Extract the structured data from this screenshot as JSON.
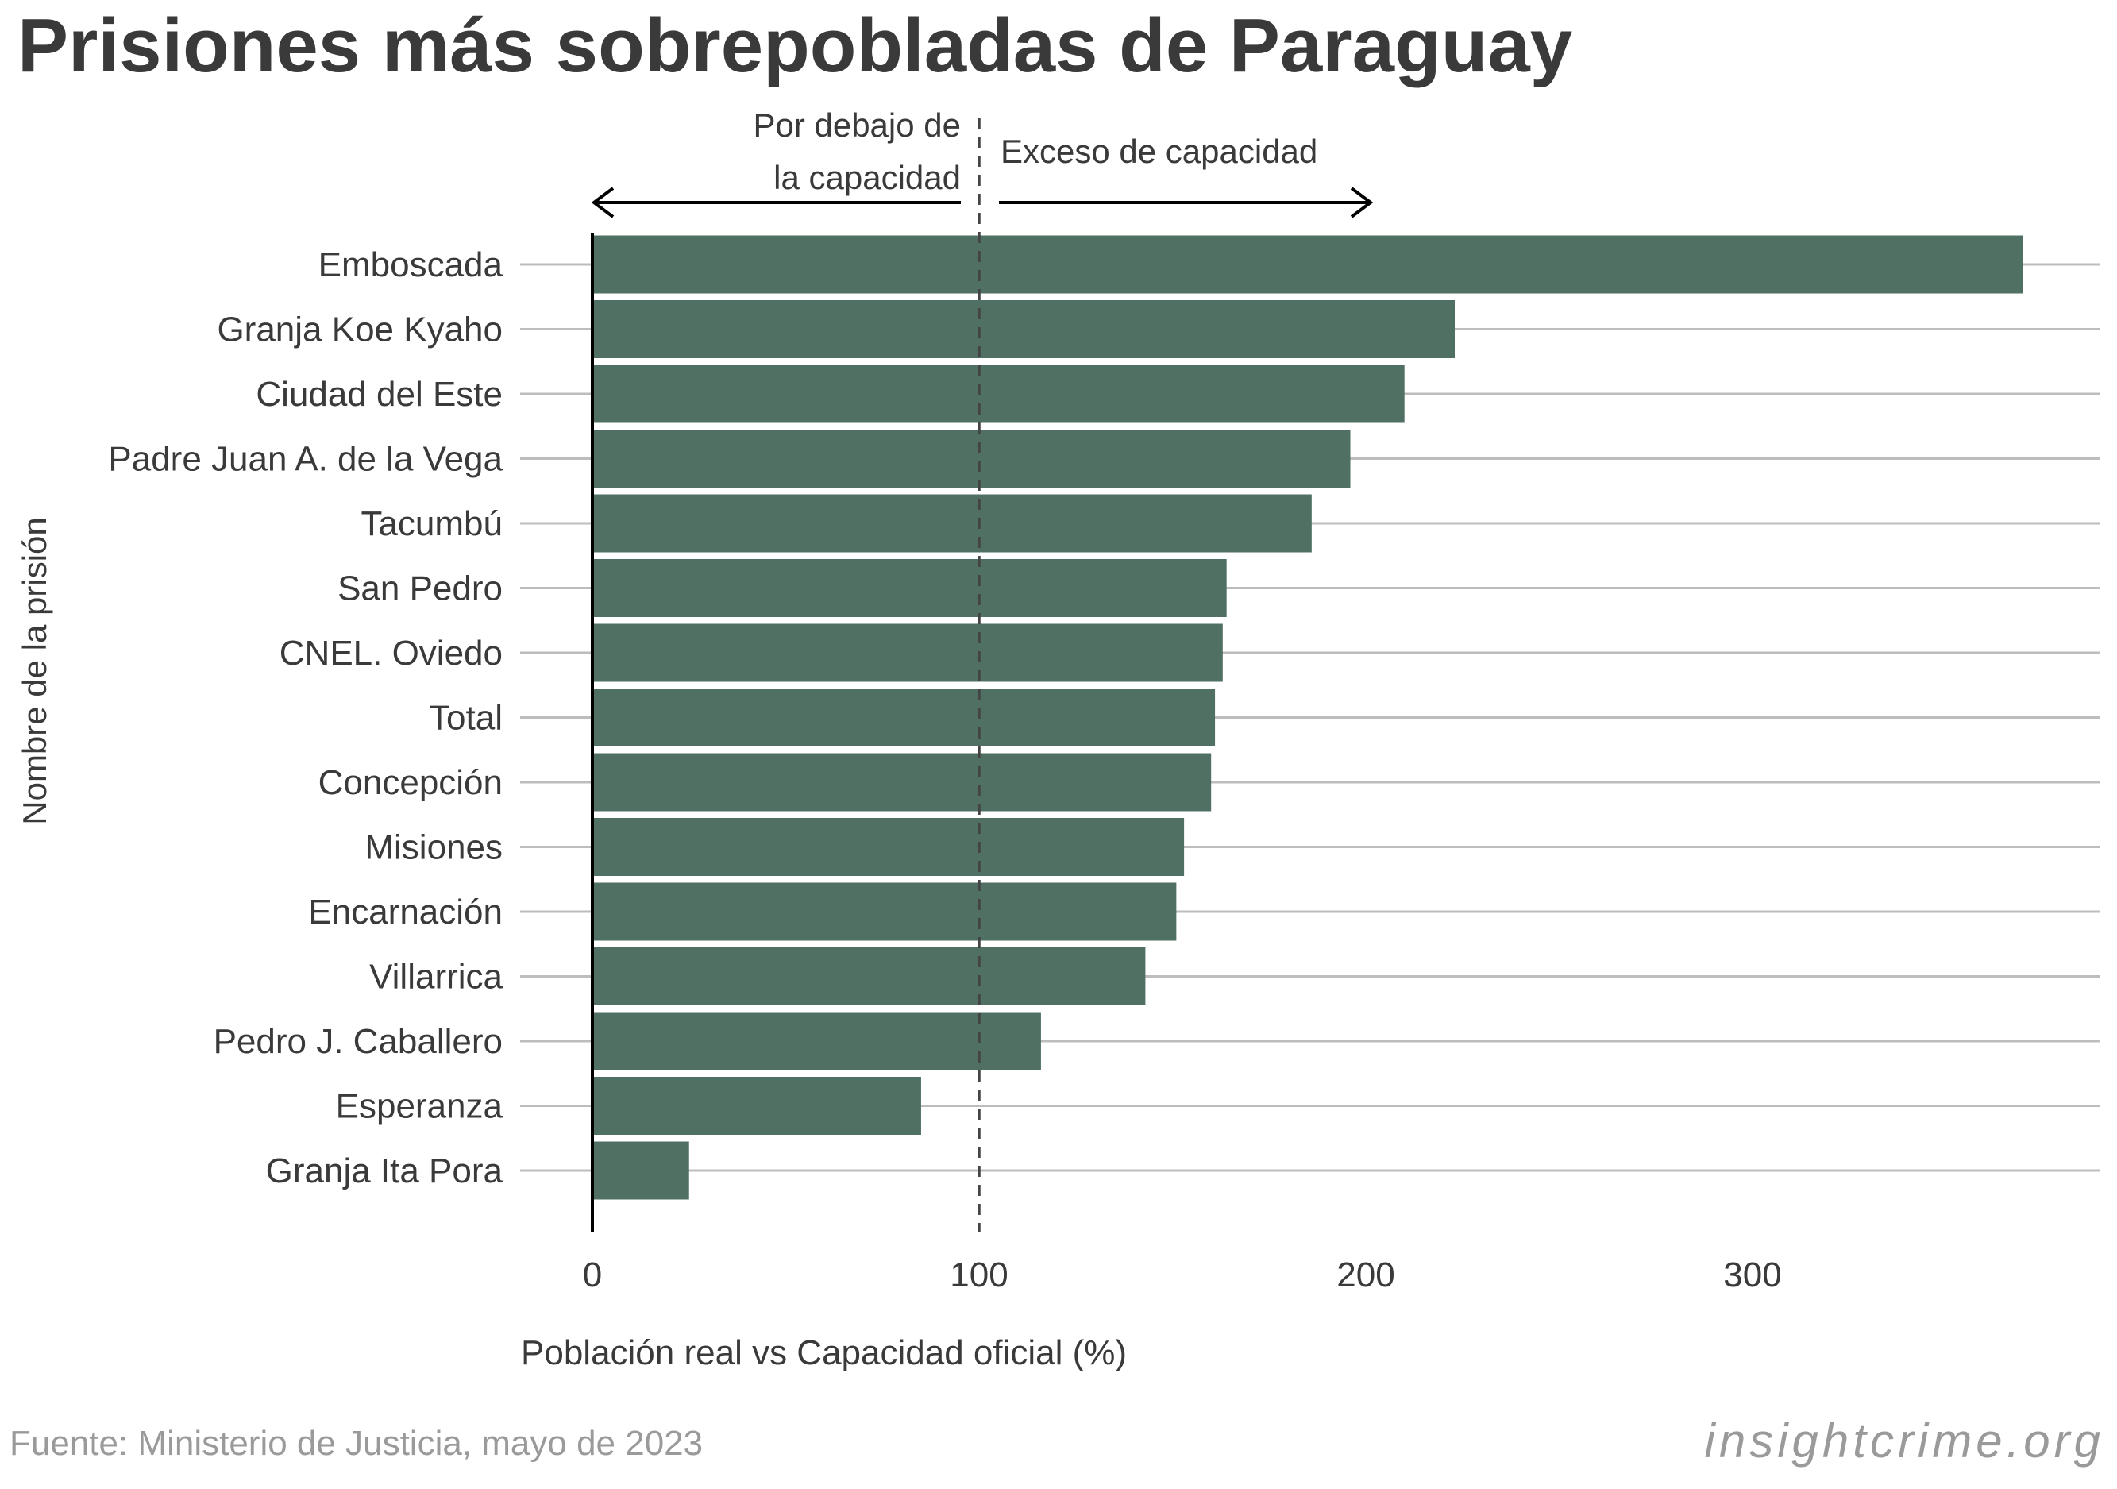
{
  "chart_data": {
    "type": "bar",
    "orientation": "horizontal",
    "title": "Prisiones más sobrepobladas de Paraguay",
    "xlabel": "Población real vs Capacidad oficial (%)",
    "ylabel": "Nombre de la prisión",
    "categories": [
      "Emboscada",
      "Granja Koe Kyaho",
      "Ciudad del Este",
      "Padre Juan A. de la Vega",
      "Tacumbú",
      "San Pedro",
      "CNEL. Oviedo",
      "Total",
      "Concepción",
      "Misiones",
      "Encarnación",
      "Villarrica",
      "Pedro J. Caballero",
      "Esperanza",
      "Granja Ita Pora"
    ],
    "values": [
      370,
      223,
      210,
      196,
      186,
      164,
      163,
      161,
      160,
      153,
      151,
      143,
      116,
      85,
      25
    ],
    "xlim": [
      0,
      390
    ],
    "xticks": [
      0,
      100,
      200,
      300
    ],
    "xtick_labels": [
      "0",
      "100",
      "200",
      "300"
    ],
    "grid": "horizontal",
    "bar_color": "#4f7062",
    "reference_line": {
      "x": 100,
      "style": "dashed"
    },
    "annotations": {
      "below_line1": "Por debajo de",
      "below_line2": "la capacidad",
      "above": "Exceso de capacidad"
    },
    "source": "Fuente: Ministerio de Justicia, mayo de 2023",
    "credit": "insightcrime.org"
  }
}
